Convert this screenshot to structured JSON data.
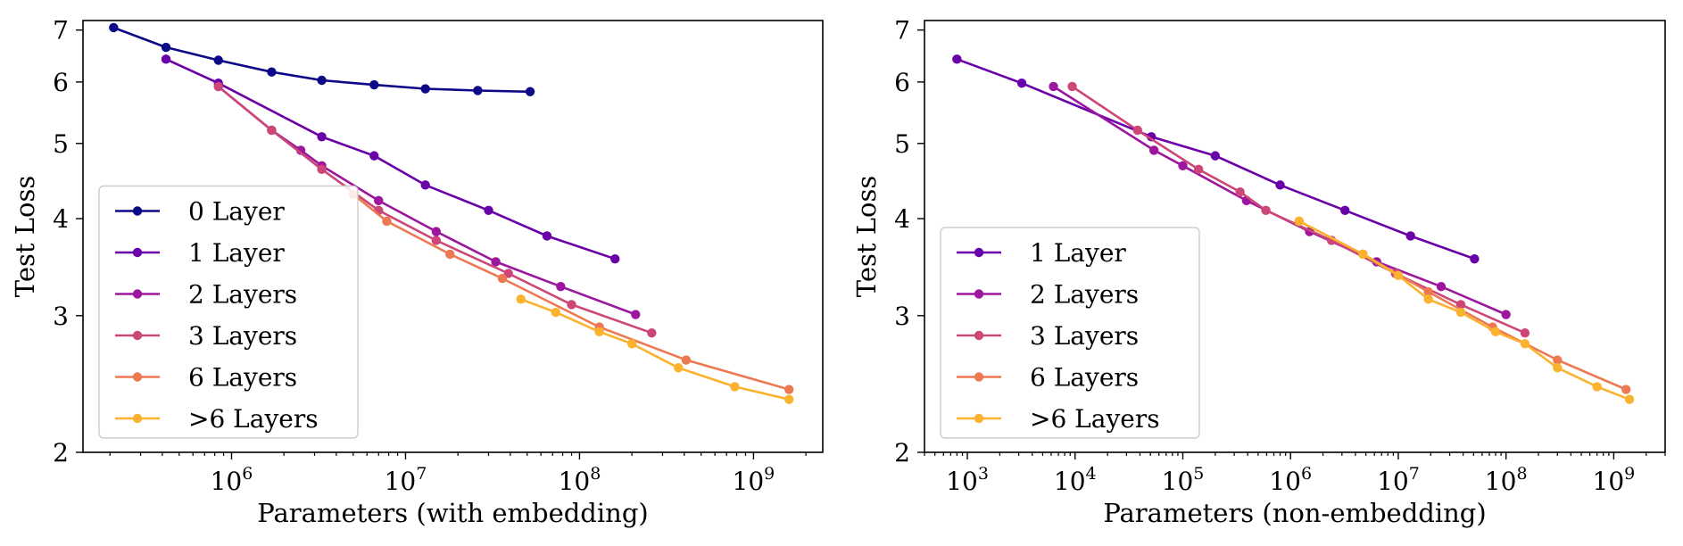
{
  "chart_data": [
    {
      "type": "line",
      "xlabel": "Parameters (with embedding)",
      "ylabel": "Test Loss",
      "xscale": "log",
      "yscale": "log",
      "xlim": [
        140000,
        2500000000
      ],
      "ylim": [
        2,
        7.2
      ],
      "xticks": [
        {
          "value": 1000000,
          "base": "10",
          "exp": "6"
        },
        {
          "value": 10000000,
          "base": "10",
          "exp": "7"
        },
        {
          "value": 100000000,
          "base": "10",
          "exp": "8"
        },
        {
          "value": 1000000000,
          "base": "10",
          "exp": "9"
        }
      ],
      "yticks": [
        {
          "value": 2,
          "label": "2"
        },
        {
          "value": 3,
          "label": "3"
        },
        {
          "value": 4,
          "label": "4"
        },
        {
          "value": 5,
          "label": "5"
        },
        {
          "value": 6,
          "label": "6"
        },
        {
          "value": 7,
          "label": "7"
        }
      ],
      "legend": {
        "position": "lower-left"
      },
      "grid": false,
      "series": [
        {
          "name": "0 Layer",
          "color": "#0d0887",
          "x": [
            210000,
            420000,
            840000,
            1700000,
            3300000,
            6600000,
            13000000,
            26000000,
            52000000
          ],
          "y": [
            7.05,
            6.65,
            6.4,
            6.18,
            6.03,
            5.95,
            5.88,
            5.85,
            5.83
          ]
        },
        {
          "name": "1 Layer",
          "color": "#6a00a8",
          "x": [
            420000,
            840000,
            3300000,
            6600000,
            13000000,
            30000000,
            65000000,
            160000000
          ],
          "y": [
            6.42,
            5.98,
            5.1,
            4.82,
            4.42,
            4.1,
            3.8,
            3.55
          ]
        },
        {
          "name": "2 Layers",
          "color": "#9c179e",
          "x": [
            840000,
            1700000,
            2500000,
            3300000,
            7000000,
            15000000,
            33000000,
            78000000,
            210000000
          ],
          "y": [
            5.92,
            5.2,
            4.9,
            4.68,
            4.22,
            3.85,
            3.52,
            3.27,
            3.01
          ]
        },
        {
          "name": "3 Layers",
          "color": "#cc4778",
          "x": [
            840000,
            1700000,
            3300000,
            7000000,
            15000000,
            39000000,
            90000000,
            260000000
          ],
          "y": [
            5.92,
            5.2,
            4.63,
            4.1,
            3.75,
            3.4,
            3.1,
            2.85
          ]
        },
        {
          "name": "6 Layers",
          "color": "#ed7953",
          "x": [
            5000000,
            7800000,
            18000000,
            36000000,
            130000000,
            410000000,
            1600000000
          ],
          "y": [
            4.3,
            3.97,
            3.6,
            3.35,
            2.9,
            2.63,
            2.41
          ]
        },
        {
          "name": ">6 Layers",
          "color": "#fbb32f",
          "x": [
            46000000,
            73000000,
            130000000,
            200000000,
            370000000,
            780000000,
            1600000000
          ],
          "y": [
            3.15,
            3.03,
            2.86,
            2.76,
            2.57,
            2.43,
            2.34
          ]
        }
      ]
    },
    {
      "type": "line",
      "xlabel": "Parameters (non-embedding)",
      "ylabel": "Test Loss",
      "xscale": "log",
      "yscale": "log",
      "xlim": [
        400,
        3000000000
      ],
      "ylim": [
        2,
        7.2
      ],
      "xticks": [
        {
          "value": 1000,
          "base": "10",
          "exp": "3"
        },
        {
          "value": 10000,
          "base": "10",
          "exp": "4"
        },
        {
          "value": 100000,
          "base": "10",
          "exp": "5"
        },
        {
          "value": 1000000,
          "base": "10",
          "exp": "6"
        },
        {
          "value": 10000000,
          "base": "10",
          "exp": "7"
        },
        {
          "value": 100000000,
          "base": "10",
          "exp": "8"
        },
        {
          "value": 1000000000,
          "base": "10",
          "exp": "9"
        }
      ],
      "yticks": [
        {
          "value": 2,
          "label": "2"
        },
        {
          "value": 3,
          "label": "3"
        },
        {
          "value": 4,
          "label": "4"
        },
        {
          "value": 5,
          "label": "5"
        },
        {
          "value": 6,
          "label": "6"
        },
        {
          "value": 7,
          "label": "7"
        }
      ],
      "legend": {
        "position": "lower-left"
      },
      "grid": false,
      "series": [
        {
          "name": "1 Layer",
          "color": "#6a00a8",
          "x": [
            800,
            3200,
            51000,
            200000,
            800000,
            3200000,
            13000000,
            51000000
          ],
          "y": [
            6.42,
            5.98,
            5.1,
            4.82,
            4.42,
            4.1,
            3.8,
            3.55
          ]
        },
        {
          "name": "2 Layers",
          "color": "#9c179e",
          "x": [
            6300,
            54000,
            100000,
            390000,
            1500000,
            6300000,
            25000000,
            100000000
          ],
          "y": [
            5.92,
            4.9,
            4.68,
            4.22,
            3.85,
            3.52,
            3.27,
            3.01
          ]
        },
        {
          "name": "3 Layers",
          "color": "#cc4778",
          "x": [
            9400,
            38000,
            140000,
            340000,
            590000,
            2400000,
            9400000,
            38000000,
            150000000
          ],
          "y": [
            5.92,
            5.2,
            4.63,
            4.33,
            4.1,
            3.75,
            3.4,
            3.1,
            2.85
          ]
        },
        {
          "name": "6 Layers",
          "color": "#ed7953",
          "x": [
            1200000,
            4700000,
            19000000,
            75000000,
            300000000,
            1300000000
          ],
          "y": [
            3.97,
            3.6,
            3.22,
            2.9,
            2.63,
            2.41
          ]
        },
        {
          "name": ">6 Layers",
          "color": "#fbb32f",
          "x": [
            1200000,
            4700000,
            10000000,
            19000000,
            38000000,
            80000000,
            150000000,
            300000000,
            700000000,
            1400000000
          ],
          "y": [
            3.97,
            3.6,
            3.38,
            3.15,
            3.03,
            2.86,
            2.76,
            2.57,
            2.43,
            2.34
          ]
        }
      ]
    }
  ]
}
